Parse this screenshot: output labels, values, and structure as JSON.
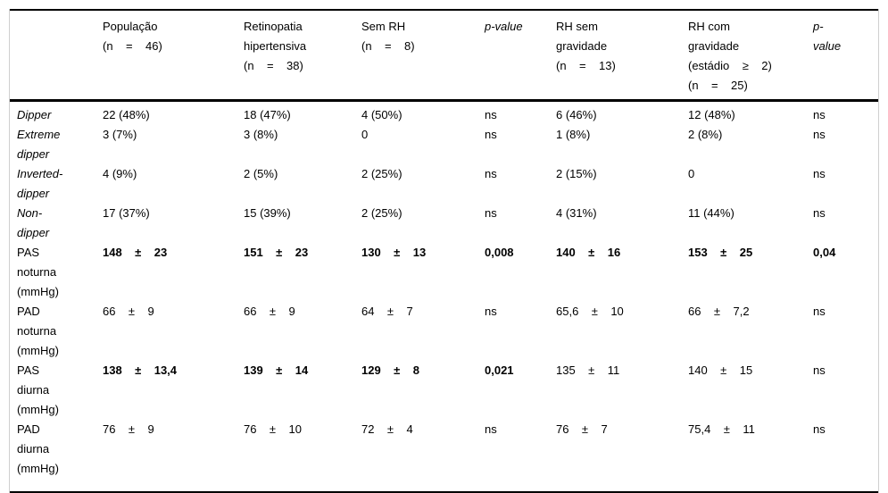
{
  "styles": {
    "text_color": "#000000",
    "rule_color": "#000000",
    "side_rail_color": "#cfcfcf",
    "background": "#ffffff"
  },
  "table": {
    "columns": [
      {
        "label": "",
        "width": 104,
        "italic": false
      },
      {
        "label": "População\n(n    =    46)",
        "width": 158,
        "italic": false
      },
      {
        "label": "Retinopatia\nhipertensiva\n(n    =    38)",
        "width": 132,
        "italic": false
      },
      {
        "label": "Sem RH\n(n    =    8)",
        "width": 138,
        "italic": false
      },
      {
        "label": "p-value",
        "width": 80,
        "italic": true
      },
      {
        "label": "RH sem\ngravidade\n(n    =    13)",
        "width": 148,
        "italic": false
      },
      {
        "label": "RH com\ngravidade\n(estádio    ≥    2)\n(n    =    25)",
        "width": 140,
        "italic": false
      },
      {
        "label": "p-\nvalue",
        "width": 73,
        "italic": true
      }
    ],
    "rows": [
      {
        "label": "Dipper",
        "italic": true,
        "cells": [
          "22 (48%)",
          "18 (47%)",
          "4 (50%)",
          "ns",
          "6 (46%)",
          "12 (48%)",
          "ns"
        ],
        "bold": [
          0,
          0,
          0,
          0,
          0,
          0,
          0
        ]
      },
      {
        "label": "Extreme\ndipper",
        "italic": true,
        "cells": [
          "3 (7%)",
          "3 (8%)",
          "0",
          "ns",
          "1 (8%)",
          "2 (8%)",
          "ns"
        ],
        "bold": [
          0,
          0,
          0,
          0,
          0,
          0,
          0
        ]
      },
      {
        "label": "Inverted-\ndipper",
        "italic": true,
        "cells": [
          "4 (9%)",
          "2 (5%)",
          "2 (25%)",
          "ns",
          "2 (15%)",
          "0",
          "ns"
        ],
        "bold": [
          0,
          0,
          0,
          0,
          0,
          0,
          0
        ]
      },
      {
        "label": "Non-\ndipper",
        "italic": true,
        "cells": [
          "17 (37%)",
          "15 (39%)",
          "2 (25%)",
          "ns",
          "4 (31%)",
          "11 (44%)",
          "ns"
        ],
        "bold": [
          0,
          0,
          0,
          0,
          0,
          0,
          0
        ]
      },
      {
        "label": "PAS\nnoturna\n(mmHg)",
        "italic": false,
        "cells": [
          "148    ±    23",
          "151    ±    23",
          "130    ±    13",
          "0,008",
          "140    ±    16",
          "153    ±    25",
          "0,04"
        ],
        "bold": [
          1,
          1,
          1,
          1,
          1,
          1,
          1
        ]
      },
      {
        "label": "PAD\nnoturna\n(mmHg)",
        "italic": false,
        "cells": [
          "66    ±    9",
          "66    ±    9",
          "64    ±    7",
          "ns",
          "65,6    ±    10",
          "66    ±    7,2",
          "ns"
        ],
        "bold": [
          0,
          0,
          0,
          0,
          0,
          0,
          0
        ]
      },
      {
        "label": "PAS\ndiurna\n(mmHg)",
        "italic": false,
        "cells": [
          "138    ±    13,4",
          "139    ±    14",
          "129    ±    8",
          "0,021",
          "135    ±    11",
          "140    ±    15",
          "ns"
        ],
        "bold": [
          1,
          1,
          1,
          1,
          0,
          0,
          0
        ]
      },
      {
        "label": "PAD\ndiurna\n(mmHg)",
        "italic": false,
        "cells": [
          "76    ±    9",
          "76    ±    10",
          "72    ±    4",
          "ns",
          "76    ±    7",
          "75,4    ±    11",
          "ns"
        ],
        "bold": [
          0,
          0,
          0,
          0,
          0,
          0,
          0
        ]
      }
    ]
  }
}
